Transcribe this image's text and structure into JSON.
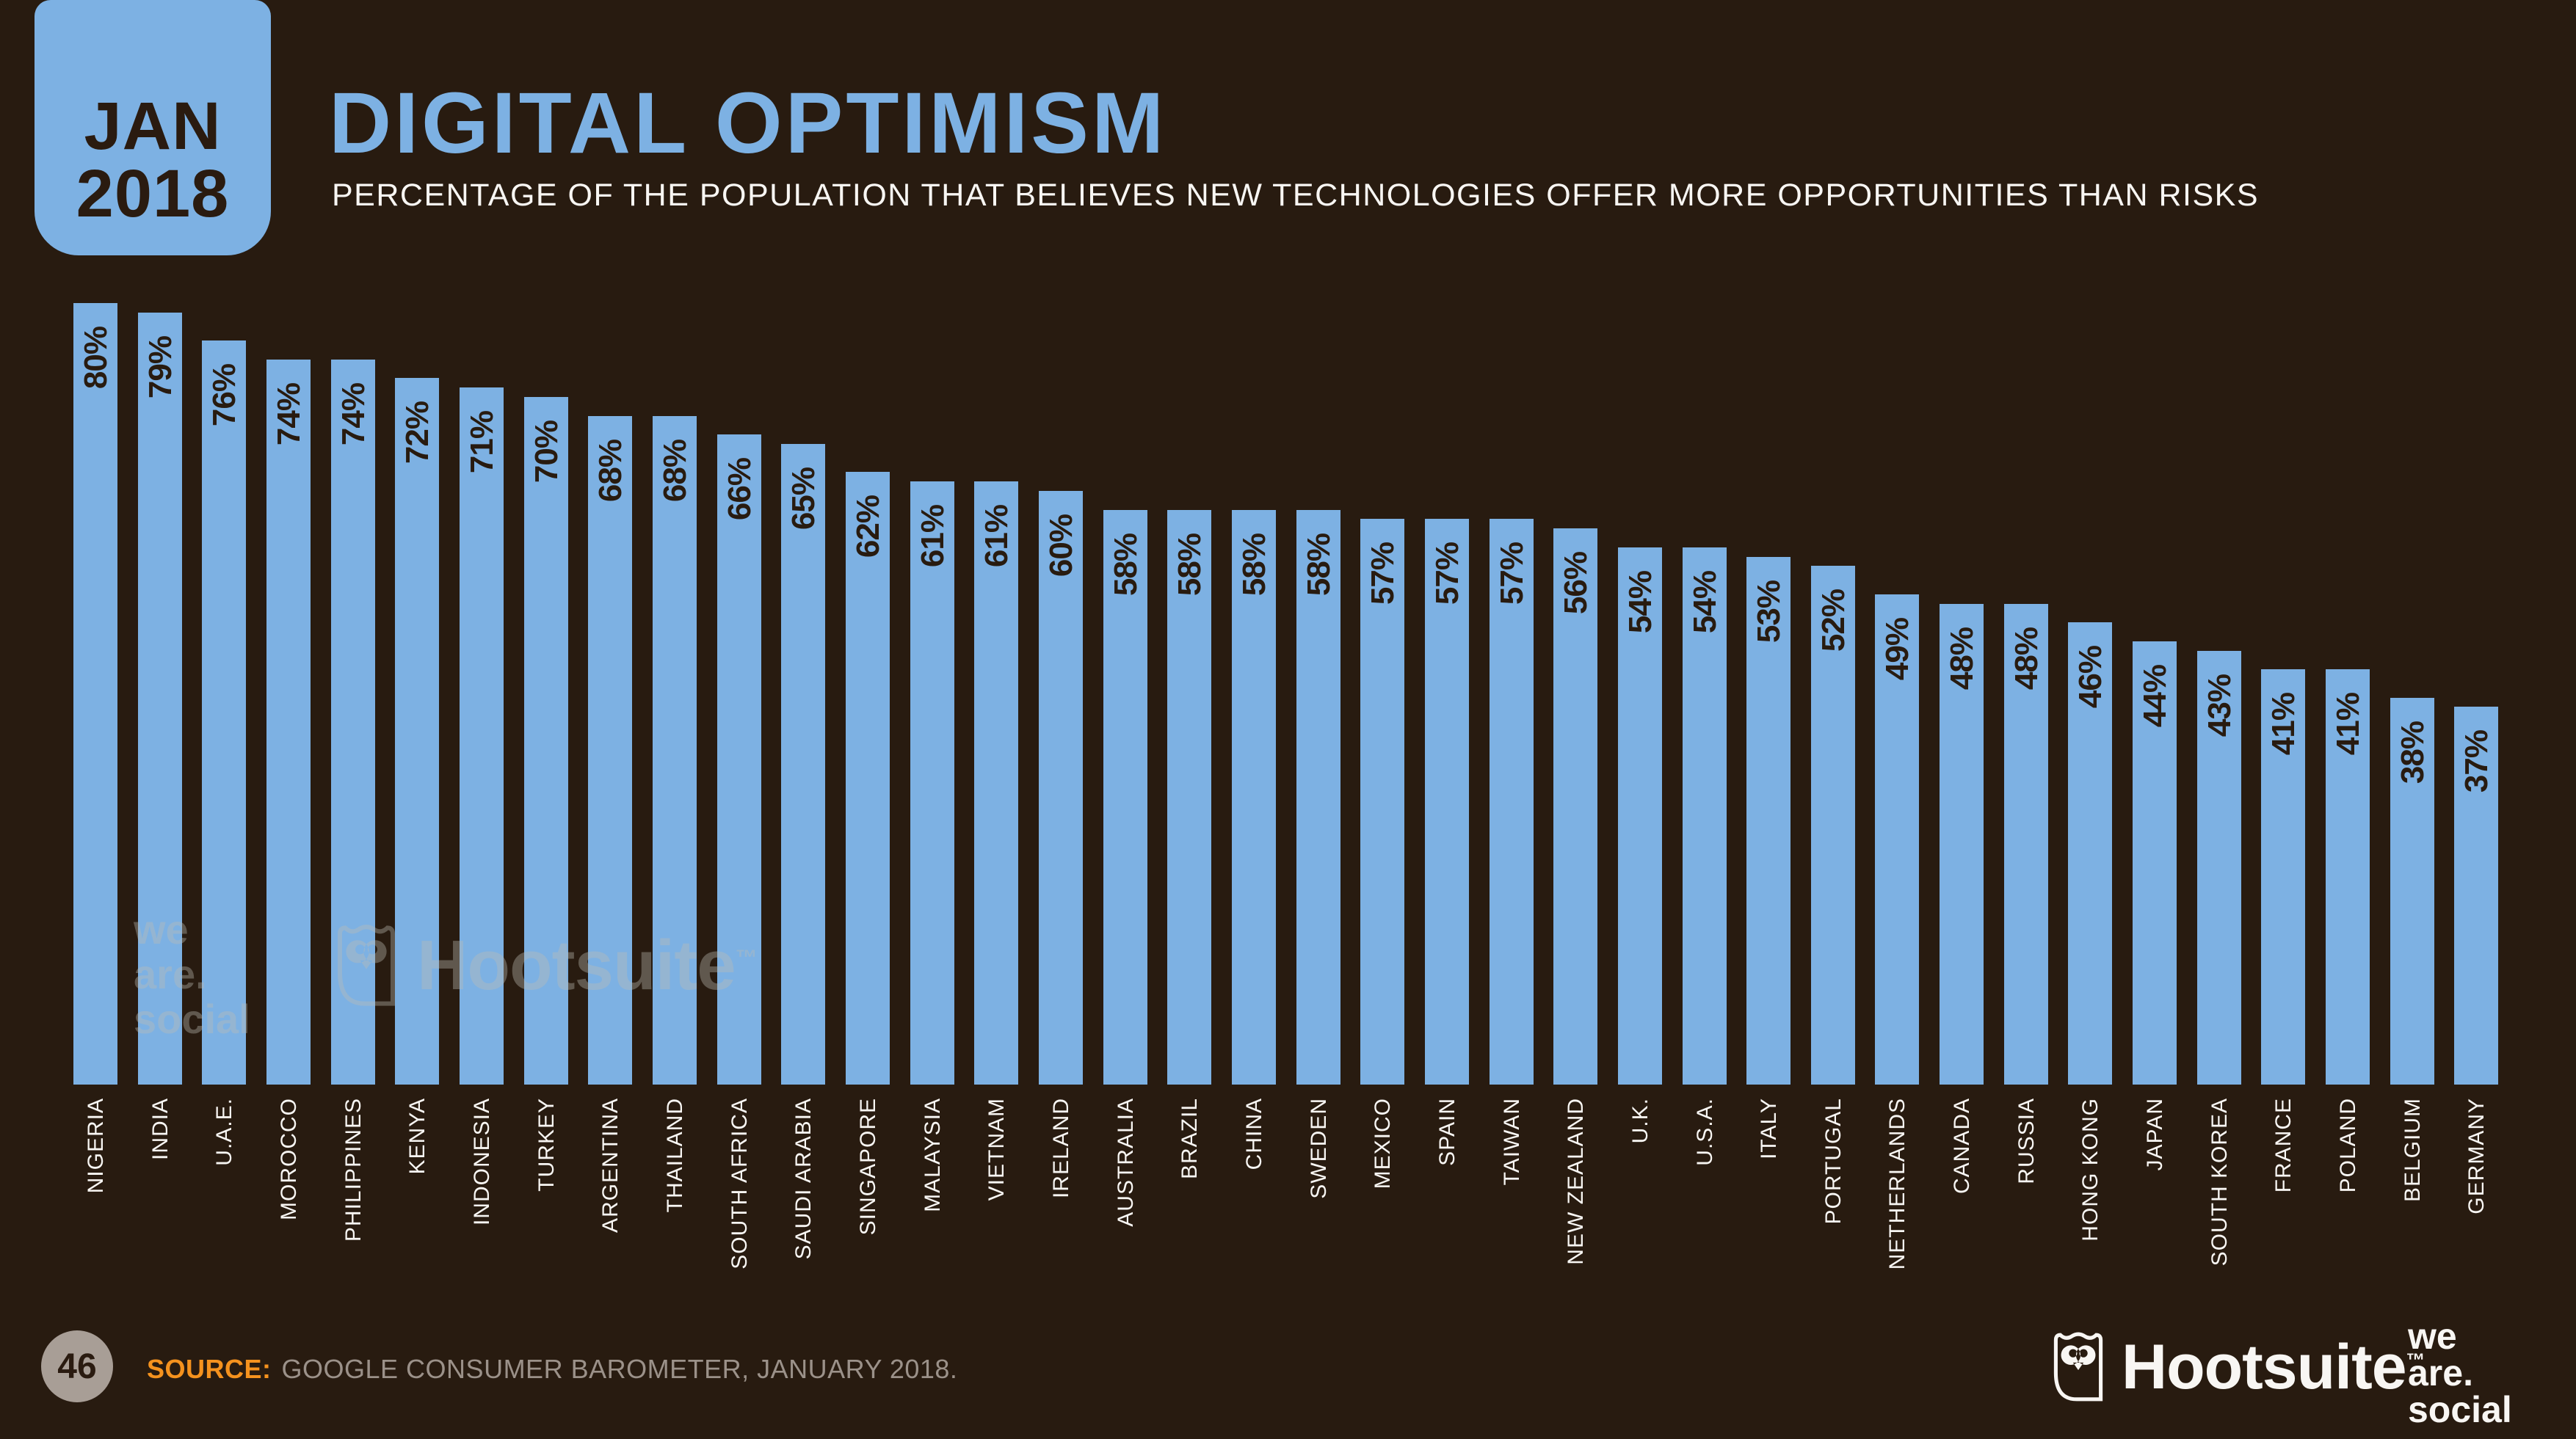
{
  "slide": {
    "date_badge": {
      "month": "JAN",
      "year": "2018"
    },
    "title": "DIGITAL OPTIMISM",
    "subtitle": "PERCENTAGE OF THE POPULATION THAT BELIEVES NEW TECHNOLOGIES OFFER MORE OPPORTUNITIES THAN RISKS",
    "page_number": "46",
    "source_label": "SOURCE:",
    "source_text": "GOOGLE CONSUMER BAROMETER, JANUARY 2018.",
    "footer": {
      "hootsuite_wordmark": "Hootsuite",
      "hootsuite_tm": "™",
      "we_are_social_line1": "we",
      "we_are_social_line2": "are.",
      "we_are_social_line3": "social"
    },
    "watermark": {
      "we_are_social_line1": "we",
      "we_are_social_line2": "are.",
      "we_are_social_line3": "social",
      "hootsuite_wordmark": "Hootsuite",
      "hootsuite_tm": "™"
    }
  },
  "colors": {
    "background": "#281b10",
    "bar": "#7db1e3",
    "title": "#7db1e3",
    "light_text": "#f8f6f3",
    "dark_text": "#2a1b10",
    "source_orange": "#f5921e",
    "source_gray": "#9b9189",
    "page_circle": "#a89e96"
  },
  "chart_data": {
    "type": "bar",
    "title": "DIGITAL OPTIMISM",
    "subtitle": "PERCENTAGE OF THE POPULATION THAT BELIEVES NEW TECHNOLOGIES OFFER MORE OPPORTUNITIES THAN RISKS",
    "value_suffix": "%",
    "ylim": [
      0,
      100
    ],
    "grid": false,
    "legend": false,
    "value_label_position": "inside-top, rotated 90° CCW",
    "category_label_position": "below baseline, rotated 90° CCW",
    "categories": [
      "NIGERIA",
      "INDIA",
      "U.A.E.",
      "MOROCCO",
      "PHILIPPINES",
      "KENYA",
      "INDONESIA",
      "TURKEY",
      "ARGENTINA",
      "THAILAND",
      "SOUTH AFRICA",
      "SAUDI ARABIA",
      "SINGAPORE",
      "MALAYSIA",
      "VIETNAM",
      "IRELAND",
      "AUSTRALIA",
      "BRAZIL",
      "CHINA",
      "SWEDEN",
      "MEXICO",
      "SPAIN",
      "TAIWAN",
      "NEW ZEALAND",
      "U.K.",
      "U.S.A.",
      "ITALY",
      "PORTUGAL",
      "NETHERLANDS",
      "CANADA",
      "RUSSIA",
      "HONG KONG",
      "JAPAN",
      "SOUTH KOREA",
      "FRANCE",
      "POLAND",
      "BELGIUM",
      "GERMANY"
    ],
    "values": [
      80,
      79,
      76,
      74,
      74,
      72,
      71,
      70,
      68,
      68,
      66,
      65,
      62,
      61,
      61,
      60,
      58,
      58,
      58,
      58,
      57,
      57,
      57,
      56,
      54,
      54,
      53,
      52,
      49,
      48,
      48,
      46,
      44,
      43,
      41,
      41,
      38,
      37
    ]
  }
}
